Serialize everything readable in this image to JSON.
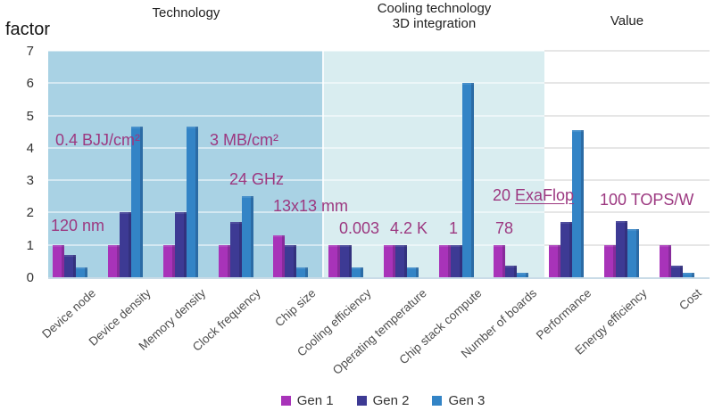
{
  "sections": {
    "technology": "Technology",
    "cooling_line1": "Cooling technology",
    "cooling_line2": "3D integration",
    "value": "Value"
  },
  "y_axis_title": "factor",
  "chart_data": {
    "type": "bar",
    "title": "",
    "xlabel": "",
    "ylabel": "factor",
    "ylim": [
      0,
      7
    ],
    "yticks": [
      0,
      1,
      2,
      3,
      4,
      5,
      6,
      7
    ],
    "grid": true,
    "legend_position": "bottom",
    "annotation_color": "#9C3880",
    "categories": [
      "Device node",
      "Device density",
      "Memory density",
      "Clock frequency",
      "Chip size",
      "Cooling efficiency",
      "Operating temperature",
      "Chip stack compute",
      "Number of boards",
      "Performance",
      "Energy efficiency",
      "Cost"
    ],
    "series": [
      {
        "name": "Gen 1",
        "color": "#A833B9",
        "values": [
          1,
          1,
          1,
          1,
          1.3,
          1,
          1,
          1,
          1,
          1,
          1,
          1
        ]
      },
      {
        "name": "Gen 2",
        "color": "#3D3A94",
        "values": [
          0.7,
          2,
          2,
          1.7,
          1,
          1,
          1,
          1,
          0.35,
          1.7,
          1.75,
          0.35
        ]
      },
      {
        "name": "Gen 3",
        "color": "#3384C6",
        "values": [
          0.3,
          4.65,
          4.65,
          2.5,
          0.3,
          0.3,
          0.3,
          6,
          0.15,
          4.55,
          1.5,
          0.15
        ]
      }
    ],
    "section_bands": [
      {
        "label": "Technology",
        "start_category": 0,
        "end_category": 4,
        "color": "#A9D2E4"
      },
      {
        "label": "Cooling technology 3D integration",
        "start_category": 5,
        "end_category": 8,
        "color": "#D9EDF0"
      },
      {
        "label": "Value",
        "start_category": 9,
        "end_category": 11,
        "color": "#FFFFFF"
      }
    ],
    "annotations": [
      {
        "text": "120 nm",
        "category": "Device node"
      },
      {
        "text": "0.4 BJJ/cm²",
        "category": "Device density"
      },
      {
        "text": "3 MB/cm²",
        "category": "Memory density"
      },
      {
        "text": "24 GHz",
        "category": "Clock frequency"
      },
      {
        "text": "13x13 mm",
        "category": "Chip size"
      },
      {
        "text": "0.003",
        "category": "Cooling efficiency"
      },
      {
        "text": "4.2 K",
        "category": "Operating temperature"
      },
      {
        "text": "1",
        "category": "Chip stack compute"
      },
      {
        "text": "78",
        "category": "Number of boards"
      },
      {
        "text": "20 ExaFlop",
        "category": "Performance",
        "underlined_part": "ExaFlop"
      },
      {
        "text": "100 TOPS/W",
        "category": "Energy efficiency"
      }
    ]
  }
}
